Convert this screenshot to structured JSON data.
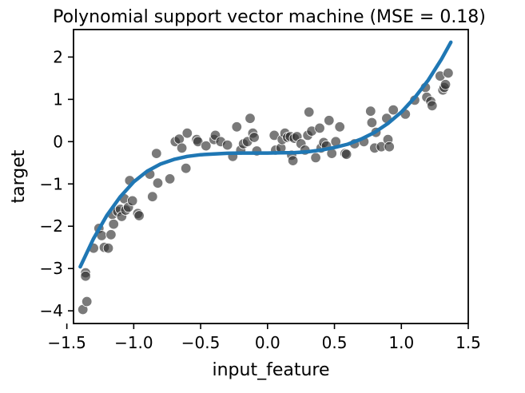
{
  "chart_data": {
    "type": "scatter",
    "title": "Polynomial support vector machine (MSE = 0.18)",
    "xlabel": "input_feature",
    "ylabel": "target",
    "xlim": [
      -1.45,
      1.5
    ],
    "ylim": [
      -4.3,
      2.65
    ],
    "xticks": [
      -1.5,
      -1.0,
      -0.5,
      0.0,
      0.5,
      1.0,
      1.5
    ],
    "xtick_labels": [
      "−1.5",
      "−1.0",
      "−0.5",
      "0.0",
      "0.5",
      "1.0",
      "1.5"
    ],
    "yticks": [
      -4,
      -3,
      -2,
      -1,
      0,
      1,
      2
    ],
    "ytick_labels": [
      "−4",
      "−3",
      "−2",
      "−1",
      "0",
      "1",
      "2"
    ],
    "grid": false,
    "legend": false,
    "colors": {
      "points": "#333333",
      "curve": "#1f77b4"
    },
    "series": [
      {
        "kind": "scatter",
        "points": [
          [
            -1.38,
            -3.97
          ],
          [
            -1.36,
            -3.1
          ],
          [
            -1.36,
            -3.18
          ],
          [
            -1.35,
            -3.78
          ],
          [
            -1.3,
            -2.52
          ],
          [
            -1.26,
            -2.05
          ],
          [
            -1.24,
            -2.22
          ],
          [
            -1.22,
            -2.5
          ],
          [
            -1.19,
            -2.52
          ],
          [
            -1.17,
            -2.2
          ],
          [
            -1.16,
            -1.72
          ],
          [
            -1.15,
            -1.95
          ],
          [
            -1.12,
            -1.65
          ],
          [
            -1.1,
            -1.6
          ],
          [
            -1.09,
            -1.77
          ],
          [
            -1.07,
            -1.35
          ],
          [
            -1.06,
            -1.62
          ],
          [
            -1.04,
            -1.55
          ],
          [
            -1.03,
            -0.92
          ],
          [
            -1.01,
            -1.4
          ],
          [
            -0.97,
            -1.7
          ],
          [
            -0.96,
            -1.75
          ],
          [
            -0.88,
            -0.77
          ],
          [
            -0.86,
            -1.3
          ],
          [
            -0.83,
            -0.28
          ],
          [
            -0.82,
            -0.98
          ],
          [
            -0.73,
            -0.88
          ],
          [
            -0.69,
            0.0
          ],
          [
            -0.66,
            0.06
          ],
          [
            -0.64,
            -0.15
          ],
          [
            -0.61,
            -0.63
          ],
          [
            -0.6,
            0.2
          ],
          [
            -0.53,
            0.05
          ],
          [
            -0.52,
            0.0
          ],
          [
            -0.46,
            -0.1
          ],
          [
            -0.4,
            0.05
          ],
          [
            -0.39,
            0.15
          ],
          [
            -0.35,
            0.0
          ],
          [
            -0.3,
            -0.08
          ],
          [
            -0.26,
            -0.35
          ],
          [
            -0.23,
            0.35
          ],
          [
            -0.2,
            -0.2
          ],
          [
            -0.18,
            -0.05
          ],
          [
            -0.15,
            0.0
          ],
          [
            -0.13,
            0.55
          ],
          [
            -0.11,
            0.2
          ],
          [
            -0.1,
            0.1
          ],
          [
            -0.08,
            -0.22
          ],
          [
            0.05,
            0.15
          ],
          [
            0.06,
            -0.2
          ],
          [
            0.1,
            -0.15
          ],
          [
            0.11,
            0.05
          ],
          [
            0.13,
            0.2
          ],
          [
            0.15,
            0.1
          ],
          [
            0.17,
            0.12
          ],
          [
            0.18,
            -0.32
          ],
          [
            0.19,
            -0.45
          ],
          [
            0.2,
            0.08
          ],
          [
            0.22,
            0.12
          ],
          [
            0.25,
            -0.05
          ],
          [
            0.28,
            -0.2
          ],
          [
            0.3,
            0.15
          ],
          [
            0.31,
            0.7
          ],
          [
            0.33,
            0.25
          ],
          [
            0.36,
            -0.38
          ],
          [
            0.39,
            0.32
          ],
          [
            0.4,
            -0.15
          ],
          [
            0.42,
            -0.02
          ],
          [
            0.44,
            -0.1
          ],
          [
            0.46,
            0.5
          ],
          [
            0.48,
            -0.28
          ],
          [
            0.51,
            0.0
          ],
          [
            0.54,
            0.35
          ],
          [
            0.58,
            -0.28
          ],
          [
            0.59,
            -0.3
          ],
          [
            0.65,
            -0.05
          ],
          [
            0.72,
            0.0
          ],
          [
            0.77,
            0.72
          ],
          [
            0.78,
            0.45
          ],
          [
            0.8,
            -0.15
          ],
          [
            0.81,
            0.22
          ],
          [
            0.85,
            -0.12
          ],
          [
            0.89,
            0.55
          ],
          [
            0.9,
            0.05
          ],
          [
            0.91,
            -0.12
          ],
          [
            0.94,
            0.75
          ],
          [
            1.03,
            0.65
          ],
          [
            1.1,
            0.98
          ],
          [
            1.18,
            1.28
          ],
          [
            1.19,
            1.05
          ],
          [
            1.22,
            0.95
          ],
          [
            1.23,
            0.85
          ],
          [
            1.29,
            1.55
          ],
          [
            1.31,
            1.22
          ],
          [
            1.32,
            1.28
          ],
          [
            1.33,
            1.35
          ],
          [
            1.35,
            1.62
          ]
        ]
      },
      {
        "kind": "line",
        "points": [
          [
            -1.4,
            -2.96
          ],
          [
            -1.3,
            -2.29
          ],
          [
            -1.2,
            -1.74
          ],
          [
            -1.1,
            -1.3
          ],
          [
            -1.0,
            -0.95
          ],
          [
            -0.9,
            -0.7
          ],
          [
            -0.8,
            -0.53
          ],
          [
            -0.7,
            -0.42
          ],
          [
            -0.6,
            -0.35
          ],
          [
            -0.5,
            -0.31
          ],
          [
            -0.4,
            -0.29
          ],
          [
            -0.3,
            -0.275
          ],
          [
            -0.2,
            -0.27
          ],
          [
            -0.1,
            -0.27
          ],
          [
            0.0,
            -0.27
          ],
          [
            0.1,
            -0.265
          ],
          [
            0.2,
            -0.26
          ],
          [
            0.3,
            -0.24
          ],
          [
            0.4,
            -0.2
          ],
          [
            0.5,
            -0.14
          ],
          [
            0.6,
            -0.06
          ],
          [
            0.7,
            0.06
          ],
          [
            0.8,
            0.22
          ],
          [
            0.9,
            0.43
          ],
          [
            1.0,
            0.7
          ],
          [
            1.1,
            1.04
          ],
          [
            1.2,
            1.45
          ],
          [
            1.3,
            1.95
          ],
          [
            1.37,
            2.35
          ]
        ]
      }
    ]
  }
}
